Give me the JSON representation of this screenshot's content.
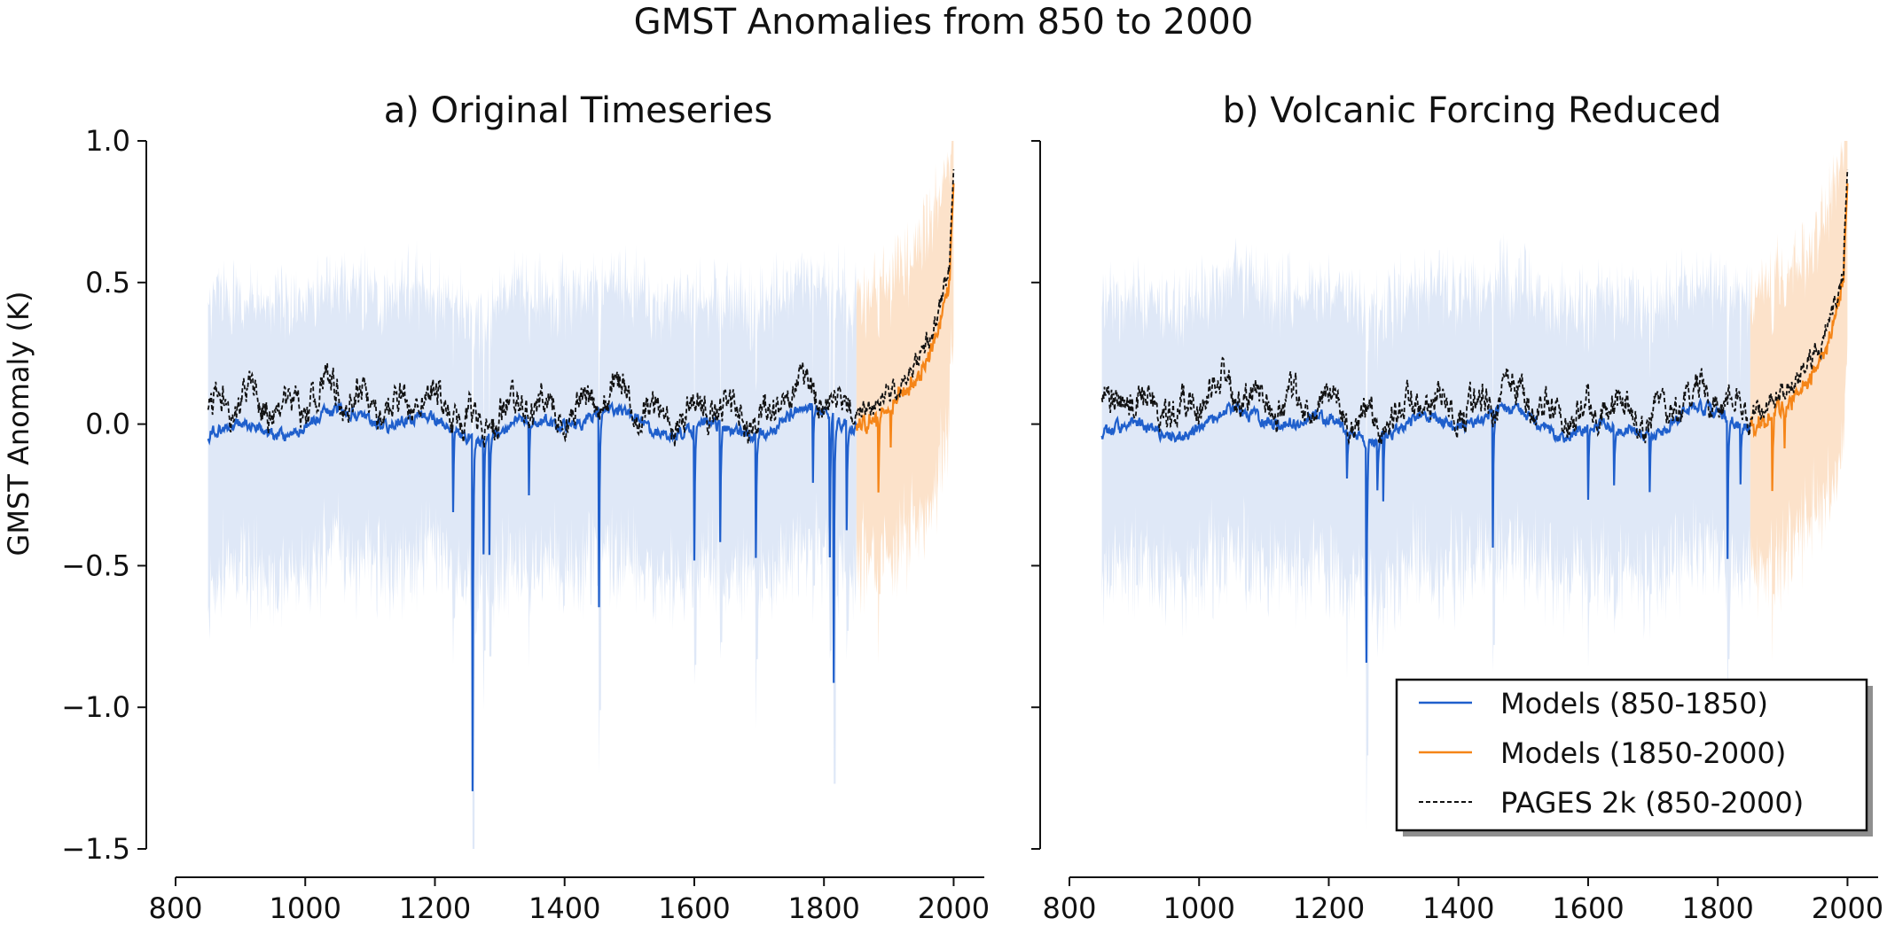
{
  "figure": {
    "suptitle": "GMST Anomalies from 850 to 2000",
    "ylabel": "GMST Anomaly (K)"
  },
  "chart_data": [
    {
      "type": "line",
      "title": "a) Original Timeseries",
      "xlabel": "",
      "ylabel": "GMST Anomaly (K)",
      "xlim": [
        800,
        2050
      ],
      "ylim": [
        -1.5,
        1.0
      ],
      "x_ticks": [
        800,
        1000,
        1200,
        1400,
        1600,
        1800,
        2000
      ],
      "x_tick_labels": [
        "800",
        "1000",
        "1200",
        "1400",
        "1600",
        "1800",
        "2000"
      ],
      "y_ticks": [
        1.0,
        0.5,
        0.0,
        -0.5,
        -1.0,
        -1.5
      ],
      "y_tick_labels": [
        "1.0",
        "0.5",
        "0.0",
        "−0.5",
        "−1.0",
        "−1.5"
      ],
      "grid": false,
      "volcanic_dips": [
        [
          1228,
          -0.33
        ],
        [
          1258,
          -1.3
        ],
        [
          1275,
          -0.45
        ],
        [
          1284,
          -0.47
        ],
        [
          1345,
          -0.25
        ],
        [
          1453,
          -0.66
        ],
        [
          1600,
          -0.5
        ],
        [
          1640,
          -0.42
        ],
        [
          1695,
          -0.48
        ],
        [
          1783,
          -0.22
        ],
        [
          1809,
          -0.45
        ],
        [
          1815,
          -0.92
        ],
        [
          1835,
          -0.38
        ],
        [
          1884,
          -0.25
        ],
        [
          1903,
          -0.1
        ]
      ]
    },
    {
      "type": "line",
      "title": "b) Volcanic Forcing Reduced",
      "xlabel": "",
      "ylabel": "",
      "xlim": [
        800,
        2050
      ],
      "ylim": [
        -1.5,
        1.0
      ],
      "x_ticks": [
        800,
        1000,
        1200,
        1400,
        1600,
        1800,
        2000
      ],
      "x_tick_labels": [
        "800",
        "1000",
        "1200",
        "1400",
        "1600",
        "1800",
        "2000"
      ],
      "y_ticks": [
        1.0,
        0.5,
        0.0,
        -0.5,
        -1.0,
        -1.5
      ],
      "y_tick_labels": [
        "",
        "",
        "",
        "",
        "",
        ""
      ],
      "grid": false,
      "legend_position": "bottom-right",
      "volcanic_dips": [
        [
          1228,
          -0.2
        ],
        [
          1258,
          -0.82
        ],
        [
          1275,
          -0.25
        ],
        [
          1284,
          -0.3
        ],
        [
          1453,
          -0.43
        ],
        [
          1600,
          -0.28
        ],
        [
          1640,
          -0.22
        ],
        [
          1695,
          -0.25
        ],
        [
          1815,
          -0.48
        ],
        [
          1835,
          -0.2
        ],
        [
          1884,
          -0.25
        ],
        [
          1903,
          -0.1
        ]
      ]
    }
  ],
  "series": [
    {
      "name": "Models (850-1850)",
      "x_range": [
        850,
        1850
      ],
      "color": "#1f5fcc"
    },
    {
      "name": "Models (1850-2000)",
      "x_range": [
        1850,
        2000
      ],
      "color": "#f58518"
    },
    {
      "name": "PAGES 2k (850-2000)",
      "x_range": [
        850,
        2000
      ],
      "color": "#111111",
      "dash": "dashed"
    }
  ],
  "colors": {
    "models_preindustrial": "#1f5fcc",
    "models_preindustrial_envelope": "#9db8e6",
    "models_industrial": "#f58518",
    "models_industrial_envelope": "#f8b77a",
    "pages2k": "#111111"
  }
}
